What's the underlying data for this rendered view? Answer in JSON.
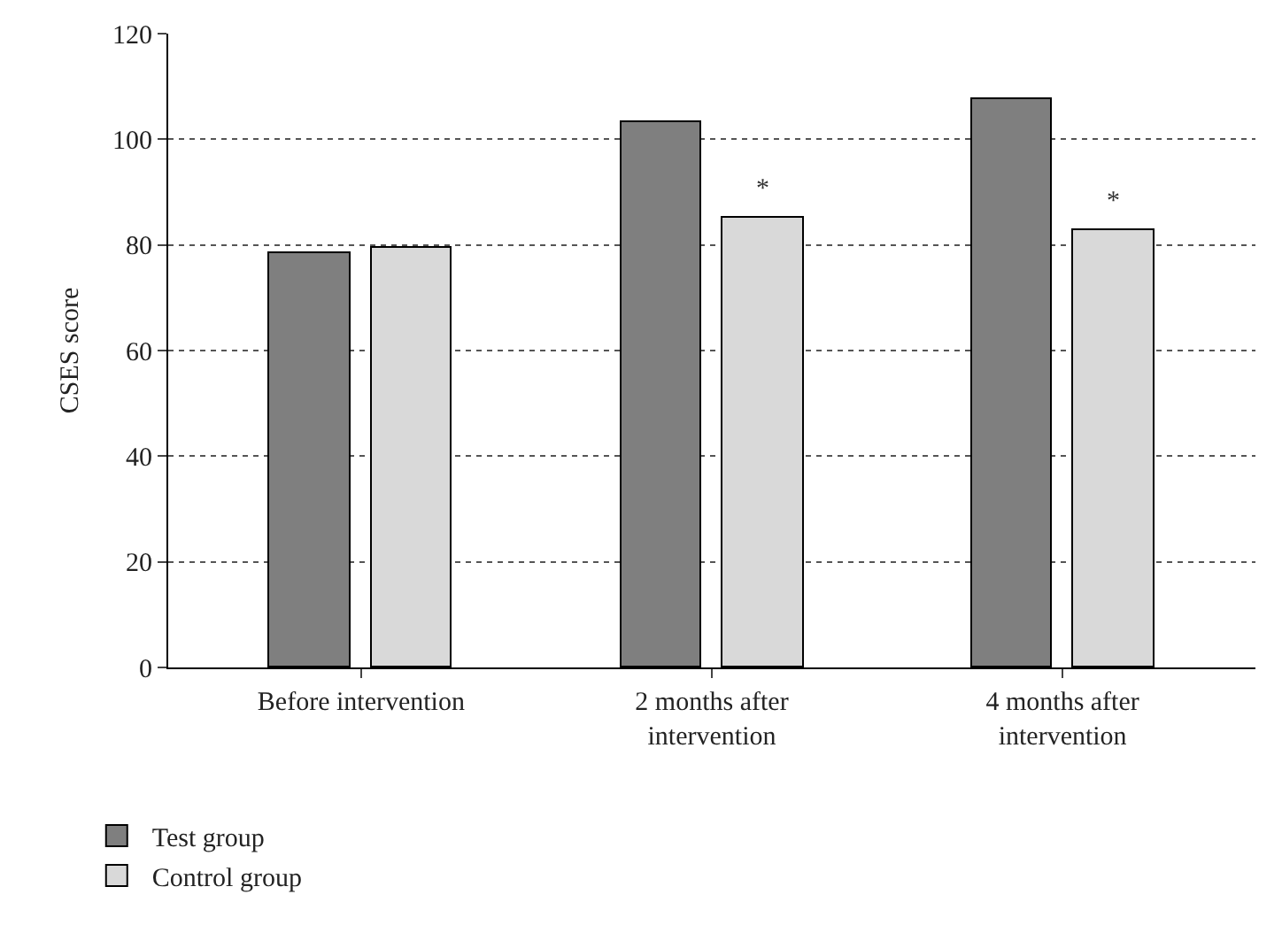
{
  "chart_data": {
    "type": "bar",
    "ylabel": "CSES score",
    "categories": [
      "Before intervention",
      "2 months after intervention",
      "4 months after intervention"
    ],
    "series": [
      {
        "name": "Test group",
        "color": "#7f7f7f",
        "values": [
          78.6,
          103.2,
          107.5
        ]
      },
      {
        "name": "Control group",
        "color": "#d9d9d9",
        "values": [
          79.6,
          85.1,
          82.8
        ]
      }
    ],
    "annotations": [
      "*",
      "*"
    ],
    "ylim": [
      0,
      120
    ],
    "yticks": [
      0,
      20,
      40,
      60,
      80,
      100,
      120
    ],
    "grid": "y",
    "legend": "bottom left"
  }
}
